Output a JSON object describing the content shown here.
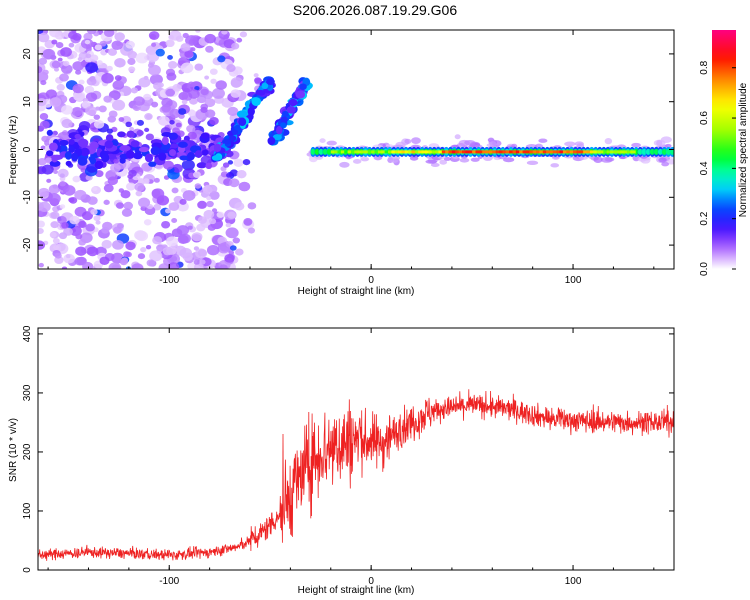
{
  "title": "S206.2026.087.19.29.G06",
  "chart_data": [
    {
      "type": "heatmap",
      "xlabel": "Height of straight line (km)",
      "ylabel": "Frequency (Hz)",
      "xlim": [
        -165,
        150
      ],
      "ylim": [
        -25,
        25
      ],
      "xticks": [
        -100,
        0,
        100
      ],
      "yticks": [
        -20,
        -10,
        0,
        10,
        20
      ],
      "colorbar": {
        "label": "Normalized spectral amplitude",
        "range": [
          0.0,
          0.95
        ],
        "ticks": [
          0.0,
          0.2,
          0.4,
          0.6,
          0.8
        ]
      },
      "features": {
        "noise_region_x": [
          -165,
          -65
        ],
        "rising_trace": [
          [
            -78,
            -2
          ],
          [
            -70,
            2
          ],
          [
            -62,
            7
          ],
          [
            -55,
            12
          ],
          [
            -50,
            14
          ]
        ],
        "rising_trace_2": [
          [
            -48,
            2
          ],
          [
            -42,
            7
          ],
          [
            -36,
            11
          ],
          [
            -32,
            14
          ]
        ],
        "carrier_line_x": [
          -30,
          150
        ],
        "carrier_line_freq_hz": -0.5
      }
    },
    {
      "type": "line",
      "xlabel": "Height of straight line (km)",
      "ylabel": "SNR (10 * v/v)",
      "xlim": [
        -165,
        150
      ],
      "ylim": [
        0,
        410
      ],
      "xticks": [
        -100,
        0,
        100
      ],
      "yticks": [
        0,
        100,
        200,
        300,
        400
      ],
      "color": "#ee2222",
      "series": [
        {
          "name": "SNR",
          "x": [
            -165,
            -140,
            -120,
            -100,
            -80,
            -65,
            -55,
            -45,
            -35,
            -25,
            -15,
            -5,
            5,
            15,
            30,
            50,
            70,
            90,
            110,
            130,
            150
          ],
          "y": [
            25,
            30,
            28,
            25,
            30,
            40,
            60,
            95,
            160,
            200,
            215,
            220,
            215,
            240,
            270,
            280,
            272,
            255,
            252,
            250,
            250
          ]
        }
      ]
    }
  ]
}
